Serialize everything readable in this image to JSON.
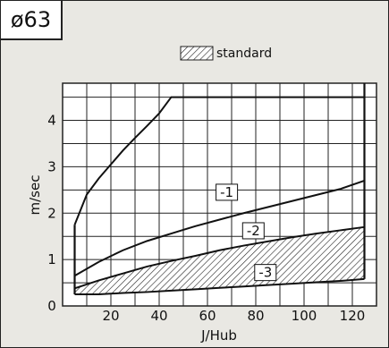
{
  "badge": "ø63",
  "chart_data": {
    "type": "line",
    "xlabel": "J/Hub",
    "ylabel": "m/sec",
    "xlim": [
      5,
      125
    ],
    "ylim": [
      0,
      4.5
    ],
    "xticks": [
      20,
      40,
      60,
      80,
      100,
      120
    ],
    "yticks": [
      0,
      1,
      2,
      3,
      4
    ],
    "grid": true,
    "legend": {
      "label": "standard",
      "position": "top",
      "pattern": "hatched"
    },
    "upper_curve": {
      "x": [
        5,
        10,
        15,
        20,
        25,
        30,
        35,
        40,
        45,
        125
      ],
      "y": [
        1.75,
        2.4,
        2.75,
        3.05,
        3.35,
        3.62,
        3.88,
        4.15,
        4.5,
        4.5
      ]
    },
    "series": [
      {
        "name": "-1",
        "x": [
          5,
          15,
          25,
          35,
          45,
          55,
          65,
          75,
          85,
          95,
          105,
          115,
          125
        ],
        "y": [
          0.65,
          0.95,
          1.2,
          1.4,
          1.56,
          1.72,
          1.86,
          2.0,
          2.13,
          2.26,
          2.39,
          2.52,
          2.7
        ]
      },
      {
        "name": "-2",
        "x": [
          5,
          15,
          25,
          35,
          45,
          55,
          65,
          75,
          85,
          95,
          105,
          115,
          125
        ],
        "y": [
          0.38,
          0.55,
          0.7,
          0.85,
          0.97,
          1.08,
          1.2,
          1.3,
          1.39,
          1.48,
          1.56,
          1.63,
          1.7
        ]
      },
      {
        "name": "-3",
        "x": [
          5,
          15,
          25,
          35,
          45,
          55,
          65,
          75,
          85,
          95,
          105,
          115,
          125
        ],
        "y": [
          0.25,
          0.25,
          0.28,
          0.3,
          0.33,
          0.36,
          0.39,
          0.42,
          0.45,
          0.48,
          0.51,
          0.54,
          0.58
        ]
      }
    ],
    "labels": [
      {
        "text": "-1",
        "x": 68,
        "y": 2.45
      },
      {
        "text": "-2",
        "x": 79,
        "y": 1.62
      },
      {
        "text": "-3",
        "x": 84,
        "y": 0.72
      }
    ]
  }
}
